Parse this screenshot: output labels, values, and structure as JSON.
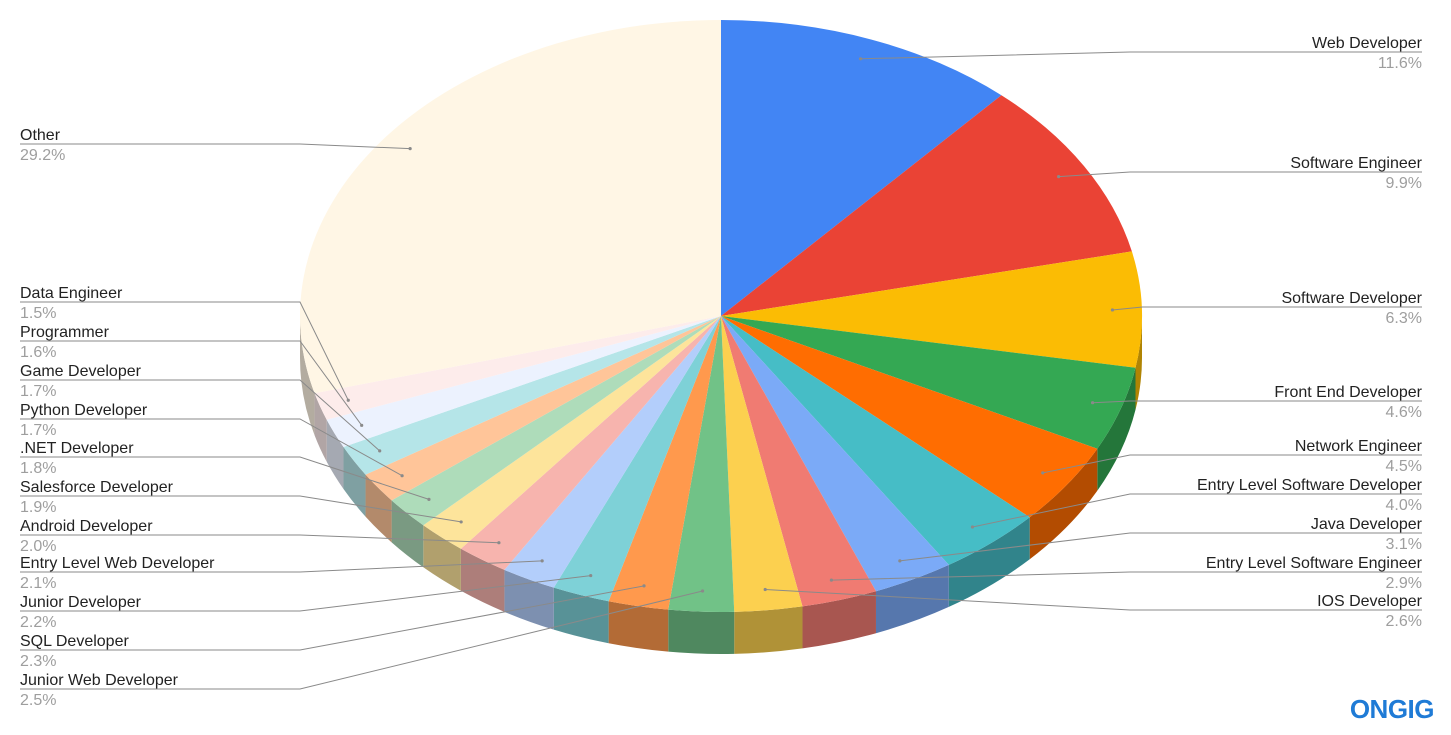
{
  "chart_data": {
    "type": "pie",
    "style": "3d",
    "legend": "labels with leader lines",
    "slices": [
      {
        "label": "Web Developer",
        "value": 11.6,
        "display": "11.6%",
        "color": "#4285f4"
      },
      {
        "label": "Software Engineer",
        "value": 9.9,
        "display": "9.9%",
        "color": "#ea4335"
      },
      {
        "label": "Software Developer",
        "value": 6.3,
        "display": "6.3%",
        "color": "#fbbc04"
      },
      {
        "label": "Front End Developer",
        "value": 4.6,
        "display": "4.6%",
        "color": "#34a853"
      },
      {
        "label": "Network Engineer",
        "value": 4.5,
        "display": "4.5%",
        "color": "#ff6d01"
      },
      {
        "label": "Entry Level Software Developer",
        "value": 4.0,
        "display": "4.0%",
        "color": "#46bdc6"
      },
      {
        "label": "Java Developer",
        "value": 3.1,
        "display": "3.1%",
        "color": "#7baaf7"
      },
      {
        "label": "Entry Level Software Engineer",
        "value": 2.9,
        "display": "2.9%",
        "color": "#f07b72"
      },
      {
        "label": "IOS Developer",
        "value": 2.6,
        "display": "2.6%",
        "color": "#fcd04f"
      },
      {
        "label": "Junior Web Developer",
        "value": 2.5,
        "display": "2.5%",
        "color": "#71c287"
      },
      {
        "label": "SQL Developer",
        "value": 2.3,
        "display": "2.3%",
        "color": "#ff994d"
      },
      {
        "label": "Junior Developer",
        "value": 2.2,
        "display": "2.2%",
        "color": "#7ed1d7"
      },
      {
        "label": "Entry Level Web Developer",
        "value": 2.1,
        "display": "2.1%",
        "color": "#b3cefb"
      },
      {
        "label": "Android Developer",
        "value": 2.0,
        "display": "2.0%",
        "color": "#f7b4ae"
      },
      {
        "label": "Salesforce Developer",
        "value": 1.9,
        "display": "1.9%",
        "color": "#fde49b"
      },
      {
        "label": ".NET Developer",
        "value": 1.8,
        "display": "1.8%",
        "color": "#aedcba"
      },
      {
        "label": "Python Developer",
        "value": 1.7,
        "display": "1.7%",
        "color": "#ffc599"
      },
      {
        "label": "Game Developer",
        "value": 1.7,
        "display": "1.7%",
        "color": "#b5e5e8"
      },
      {
        "label": "Programmer",
        "value": 1.6,
        "display": "1.6%",
        "color": "#ecf2fe"
      },
      {
        "label": "Data Engineer",
        "value": 1.5,
        "display": "1.5%",
        "color": "#fdeceb"
      },
      {
        "label": "Other",
        "value": 29.2,
        "display": "29.2%",
        "color": "#fff6e5"
      }
    ]
  },
  "brand": {
    "text": "ONGIG",
    "color": "#1f7bd6"
  }
}
